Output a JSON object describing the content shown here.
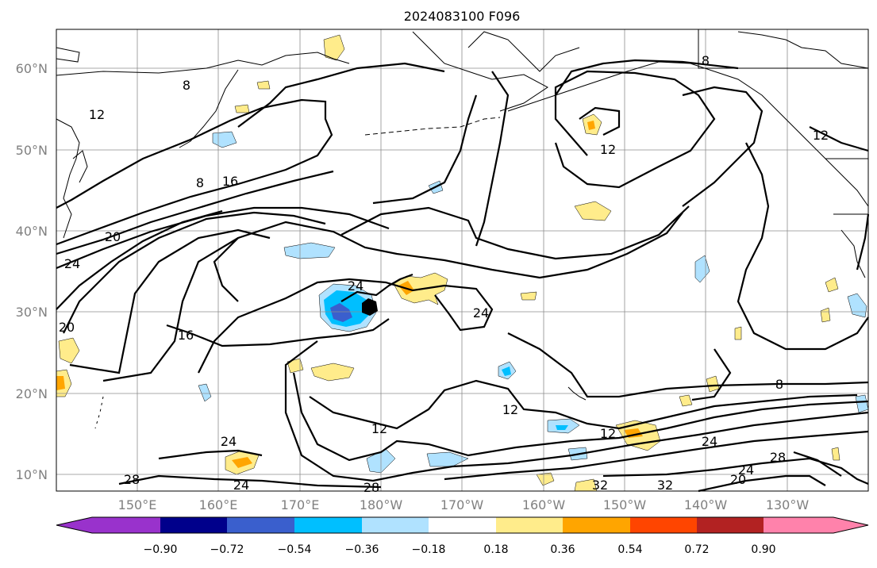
{
  "figure": {
    "title": "2024083100 F096"
  },
  "axes": {
    "lat_labels": [
      "60°N",
      "50°N",
      "40°N",
      "30°N",
      "20°N",
      "10°N"
    ],
    "lon_labels": [
      "150°E",
      "160°E",
      "170°E",
      "180°W",
      "170°W",
      "160°W",
      "150°W",
      "140°W",
      "130°W"
    ]
  },
  "contour_labels": [
    "8",
    "12",
    "16",
    "20",
    "24",
    "28",
    "32"
  ],
  "colorbar": {
    "ticks": [
      "−0.90",
      "−0.72",
      "−0.54",
      "−0.36",
      "−0.18",
      "0.18",
      "0.36",
      "0.54",
      "0.72",
      "0.90"
    ],
    "colors": [
      "#9932cc",
      "#00008b",
      "#3a5fcd",
      "#00bfff",
      "#b0e2ff",
      "#ffffff",
      "#ffec8b",
      "#ffa500",
      "#ff4500",
      "#b22222",
      "#ff82ab"
    ]
  }
}
